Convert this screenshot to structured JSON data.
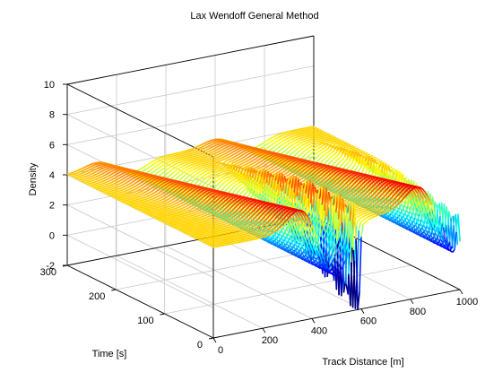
{
  "chart_data": {
    "type": "surface",
    "title": "Lax Wendoff General Method",
    "xlabel": "Track Distance [m]",
    "ylabel": "Time [s]",
    "zlabel": "Density",
    "x_ticks": [
      "0",
      "200",
      "400",
      "600",
      "800",
      "1000"
    ],
    "y_ticks": [
      "0",
      "100",
      "200",
      "300"
    ],
    "z_ticks": [
      "-2",
      "0",
      "2",
      "4",
      "6",
      "8",
      "10"
    ],
    "xlim": [
      0,
      1000
    ],
    "ylim": [
      0,
      300
    ],
    "zlim": [
      -2,
      10
    ],
    "grid": true,
    "colormap": "jet",
    "color_range": [
      0,
      6
    ],
    "surface_description": {
      "base_density": 4,
      "features": [
        {
          "shape": "hump",
          "x_center": 420,
          "z_peak": 5.5,
          "z_trough": 0.5
        },
        {
          "shape": "hump",
          "x_center": 900,
          "z_peak": 5.5,
          "z_trough": 0.5
        },
        {
          "shape": "spike",
          "x_position": 580,
          "z_max": 6.5,
          "z_min": -2
        },
        {
          "shape": "spike",
          "x_position": 1000,
          "z_max": 6.3,
          "z_min": 2.5
        }
      ]
    }
  }
}
